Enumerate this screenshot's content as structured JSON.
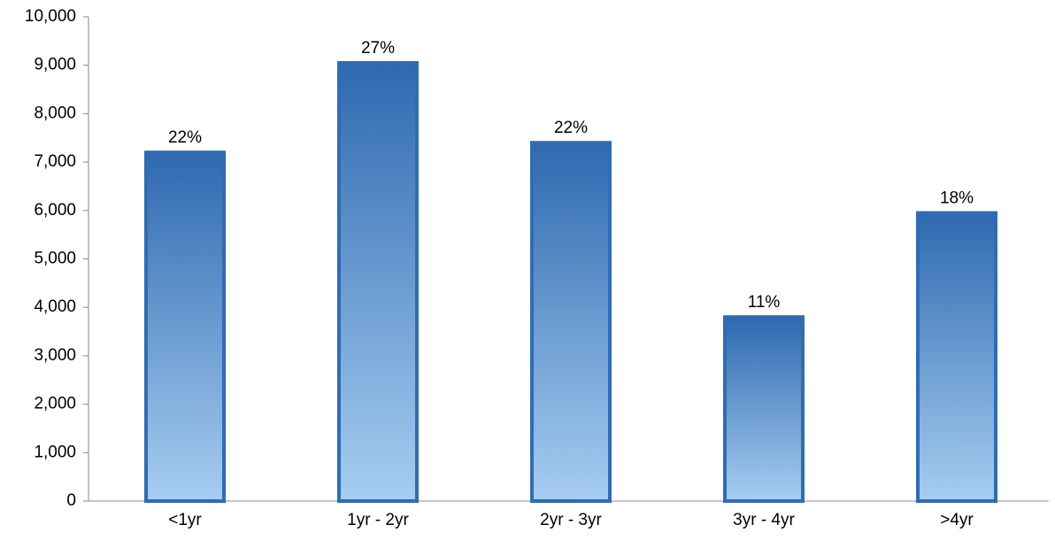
{
  "chart_data": {
    "type": "bar",
    "categories": [
      "<1yr",
      "1yr - 2yr",
      "2yr - 3yr",
      "3yr - 4yr",
      ">4yr"
    ],
    "values": [
      7200,
      9050,
      7400,
      3800,
      5950
    ],
    "annotations": [
      "22%",
      "27%",
      "22%",
      "11%",
      "18%"
    ],
    "color": "#2f6db3",
    "ylim": [
      0,
      10000
    ],
    "yticks": [
      0,
      {
        "value": 1000,
        "label": "1,000"
      },
      {
        "value": 2000,
        "label": "2,000"
      },
      {
        "value": 3000,
        "label": "3,000"
      },
      {
        "value": 4000,
        "label": "4,000"
      },
      {
        "value": 5000,
        "label": "5,000"
      },
      {
        "value": 6000,
        "label": "6,000"
      },
      {
        "value": 7000,
        "label": "7,000"
      },
      {
        "value": 8000,
        "label": "8,000"
      },
      {
        "value": 9000,
        "label": "9,000"
      },
      {
        "value": 10000,
        "label": "10,000"
      }
    ],
    "grid": false
  }
}
